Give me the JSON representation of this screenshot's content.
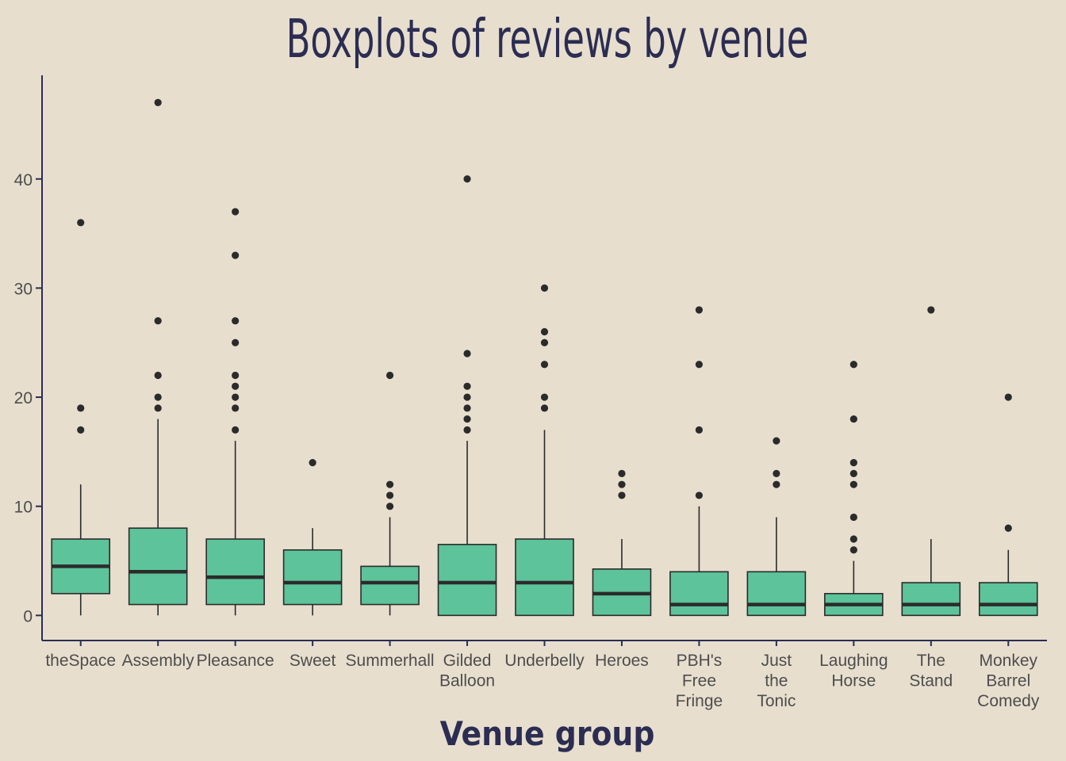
{
  "chart_data": {
    "type": "boxplot",
    "title": "Boxplots of reviews by venue",
    "xlabel": "Venue group",
    "ylabel": "",
    "ylim": [
      -2.3,
      49.5
    ],
    "yticks": [
      0,
      10,
      20,
      30,
      40
    ],
    "grid": false,
    "legend": "none",
    "colors": {
      "background": "#e7dece",
      "box_fill": "#5dc39a",
      "box_stroke": "#2b2b2b",
      "title": "#2b2d52",
      "axis": "#2b2d52",
      "tick_text": "#4d4d4d"
    },
    "categories": [
      {
        "label": [
          "theSpace"
        ],
        "q1": 2,
        "median": 4.5,
        "q3": 7,
        "whisker_low": 0,
        "whisker_high": 12,
        "outliers": [
          17,
          19,
          36
        ]
      },
      {
        "label": [
          "Assembly"
        ],
        "q1": 1,
        "median": 4,
        "q3": 8,
        "whisker_low": 0,
        "whisker_high": 18,
        "outliers": [
          19,
          20,
          22,
          27,
          47
        ]
      },
      {
        "label": [
          "Pleasance"
        ],
        "q1": 1,
        "median": 3.5,
        "q3": 7,
        "whisker_low": 0,
        "whisker_high": 16,
        "outliers": [
          17,
          19,
          20,
          21,
          22,
          25,
          27,
          33,
          37
        ]
      },
      {
        "label": [
          "Sweet"
        ],
        "q1": 1,
        "median": 3,
        "q3": 6,
        "whisker_low": 0,
        "whisker_high": 8,
        "outliers": [
          14
        ]
      },
      {
        "label": [
          "Summerhall"
        ],
        "q1": 1,
        "median": 3,
        "q3": 4.5,
        "whisker_low": 0,
        "whisker_high": 9,
        "outliers": [
          10,
          11,
          12,
          22
        ]
      },
      {
        "label": [
          "Gilded",
          "Balloon"
        ],
        "q1": 0,
        "median": 3,
        "q3": 6.5,
        "whisker_low": 0,
        "whisker_high": 16,
        "outliers": [
          17,
          18,
          19,
          20,
          21,
          24,
          40
        ]
      },
      {
        "label": [
          "Underbelly"
        ],
        "q1": 0,
        "median": 3,
        "q3": 7,
        "whisker_low": 0,
        "whisker_high": 17,
        "outliers": [
          19,
          20,
          23,
          25,
          26,
          30
        ]
      },
      {
        "label": [
          "Heroes"
        ],
        "q1": 0,
        "median": 2,
        "q3": 4.25,
        "whisker_low": 0,
        "whisker_high": 7,
        "outliers": [
          11,
          12,
          13
        ]
      },
      {
        "label": [
          "PBH's",
          "Free",
          "Fringe"
        ],
        "q1": 0,
        "median": 1,
        "q3": 4,
        "whisker_low": 0,
        "whisker_high": 10,
        "outliers": [
          11,
          17,
          23,
          28
        ]
      },
      {
        "label": [
          "Just",
          "the",
          "Tonic"
        ],
        "q1": 0,
        "median": 1,
        "q3": 4,
        "whisker_low": 0,
        "whisker_high": 9,
        "outliers": [
          12,
          13,
          16
        ]
      },
      {
        "label": [
          "Laughing",
          "Horse"
        ],
        "q1": 0,
        "median": 1,
        "q3": 2,
        "whisker_low": 0,
        "whisker_high": 5,
        "outliers": [
          6,
          7,
          9,
          12,
          13,
          14,
          18,
          23
        ]
      },
      {
        "label": [
          "The",
          "Stand"
        ],
        "q1": 0,
        "median": 1,
        "q3": 3,
        "whisker_low": 0,
        "whisker_high": 7,
        "outliers": [
          28
        ]
      },
      {
        "label": [
          "Monkey",
          "Barrel",
          "Comedy"
        ],
        "q1": 0,
        "median": 1,
        "q3": 3,
        "whisker_low": 0,
        "whisker_high": 6,
        "outliers": [
          8,
          20
        ]
      }
    ]
  }
}
